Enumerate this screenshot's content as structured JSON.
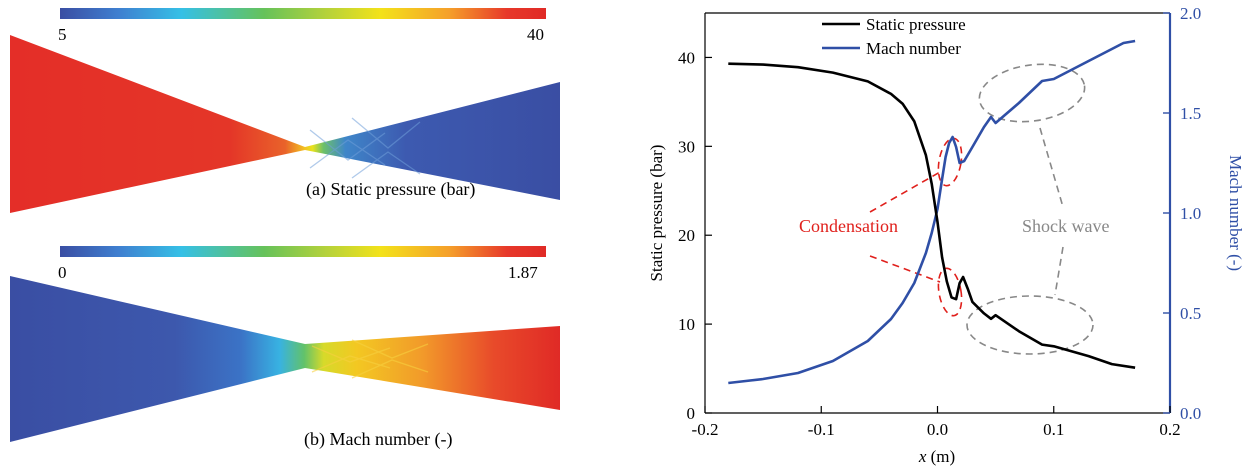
{
  "contours": [
    {
      "caption": "(a) Static pressure (bar)",
      "colorbar_min_label": "5",
      "colorbar_max_label": "40",
      "quantity": "static pressure",
      "range": [
        5,
        40
      ]
    },
    {
      "caption": "(b) Mach number (-)",
      "colorbar_min_label": "0",
      "colorbar_max_label": "1.87",
      "quantity": "Mach number",
      "range": [
        0,
        1.87
      ]
    }
  ],
  "colors": {
    "pressure_line": "#000000",
    "mach_line": "#2f4fa6",
    "condensation": "#e0201c",
    "shock": "#888888",
    "colormap": [
      "#3a4ea3",
      "#3f7fd0",
      "#35c0e6",
      "#66c25a",
      "#b6d23a",
      "#f3e21a",
      "#f5a02a",
      "#e7382a",
      "#e02a26"
    ]
  },
  "chart_data": {
    "type": "line",
    "xlabel": "x (m)",
    "ylabel_left": "Static pressure (bar)",
    "ylabel_right": "Mach number (-)",
    "xlim": [
      -0.2,
      0.2
    ],
    "ylim_left": [
      0,
      45
    ],
    "ylim_right": [
      0,
      2.0
    ],
    "x_ticks": [
      "-0.2",
      "-0.1",
      "0.0",
      "0.1",
      "0.2"
    ],
    "y_ticks_left": [
      "0",
      "10",
      "20",
      "30",
      "40"
    ],
    "y_ticks_right": [
      "0.0",
      "0.5",
      "1.0",
      "1.5",
      "2.0"
    ],
    "legend_position": "top",
    "series": [
      {
        "name": "Static pressure",
        "axis": "left",
        "x": [
          -0.18,
          -0.15,
          -0.12,
          -0.09,
          -0.06,
          -0.04,
          -0.03,
          -0.02,
          -0.01,
          -0.005,
          0.0,
          0.004,
          0.008,
          0.012,
          0.016,
          0.019,
          0.022,
          0.026,
          0.03,
          0.04,
          0.046,
          0.05,
          0.07,
          0.09,
          0.1,
          0.13,
          0.15,
          0.17
        ],
        "values": [
          39.3,
          39.2,
          38.9,
          38.3,
          37.3,
          35.9,
          34.8,
          32.8,
          29.0,
          25.8,
          21.5,
          17.5,
          14.8,
          13.0,
          12.8,
          14.6,
          15.3,
          14.0,
          12.5,
          11.2,
          10.6,
          11.0,
          9.2,
          7.7,
          7.5,
          6.4,
          5.5,
          5.1
        ]
      },
      {
        "name": "Mach number",
        "axis": "right",
        "x": [
          -0.18,
          -0.15,
          -0.12,
          -0.09,
          -0.06,
          -0.04,
          -0.03,
          -0.02,
          -0.01,
          -0.005,
          0.0,
          0.004,
          0.007,
          0.01,
          0.013,
          0.016,
          0.019,
          0.023,
          0.03,
          0.04,
          0.046,
          0.05,
          0.07,
          0.09,
          0.1,
          0.13,
          0.16,
          0.17
        ],
        "values": [
          0.15,
          0.17,
          0.2,
          0.26,
          0.36,
          0.47,
          0.55,
          0.65,
          0.8,
          0.9,
          1.02,
          1.17,
          1.28,
          1.35,
          1.38,
          1.33,
          1.25,
          1.26,
          1.33,
          1.43,
          1.48,
          1.45,
          1.55,
          1.66,
          1.67,
          1.76,
          1.85,
          1.86
        ]
      }
    ],
    "annotations": [
      {
        "text": "Condensation",
        "x": -0.085,
        "y_left": 20.5
      },
      {
        "text": "Shock wave",
        "x": 0.142,
        "y_left": 20.5
      }
    ]
  }
}
